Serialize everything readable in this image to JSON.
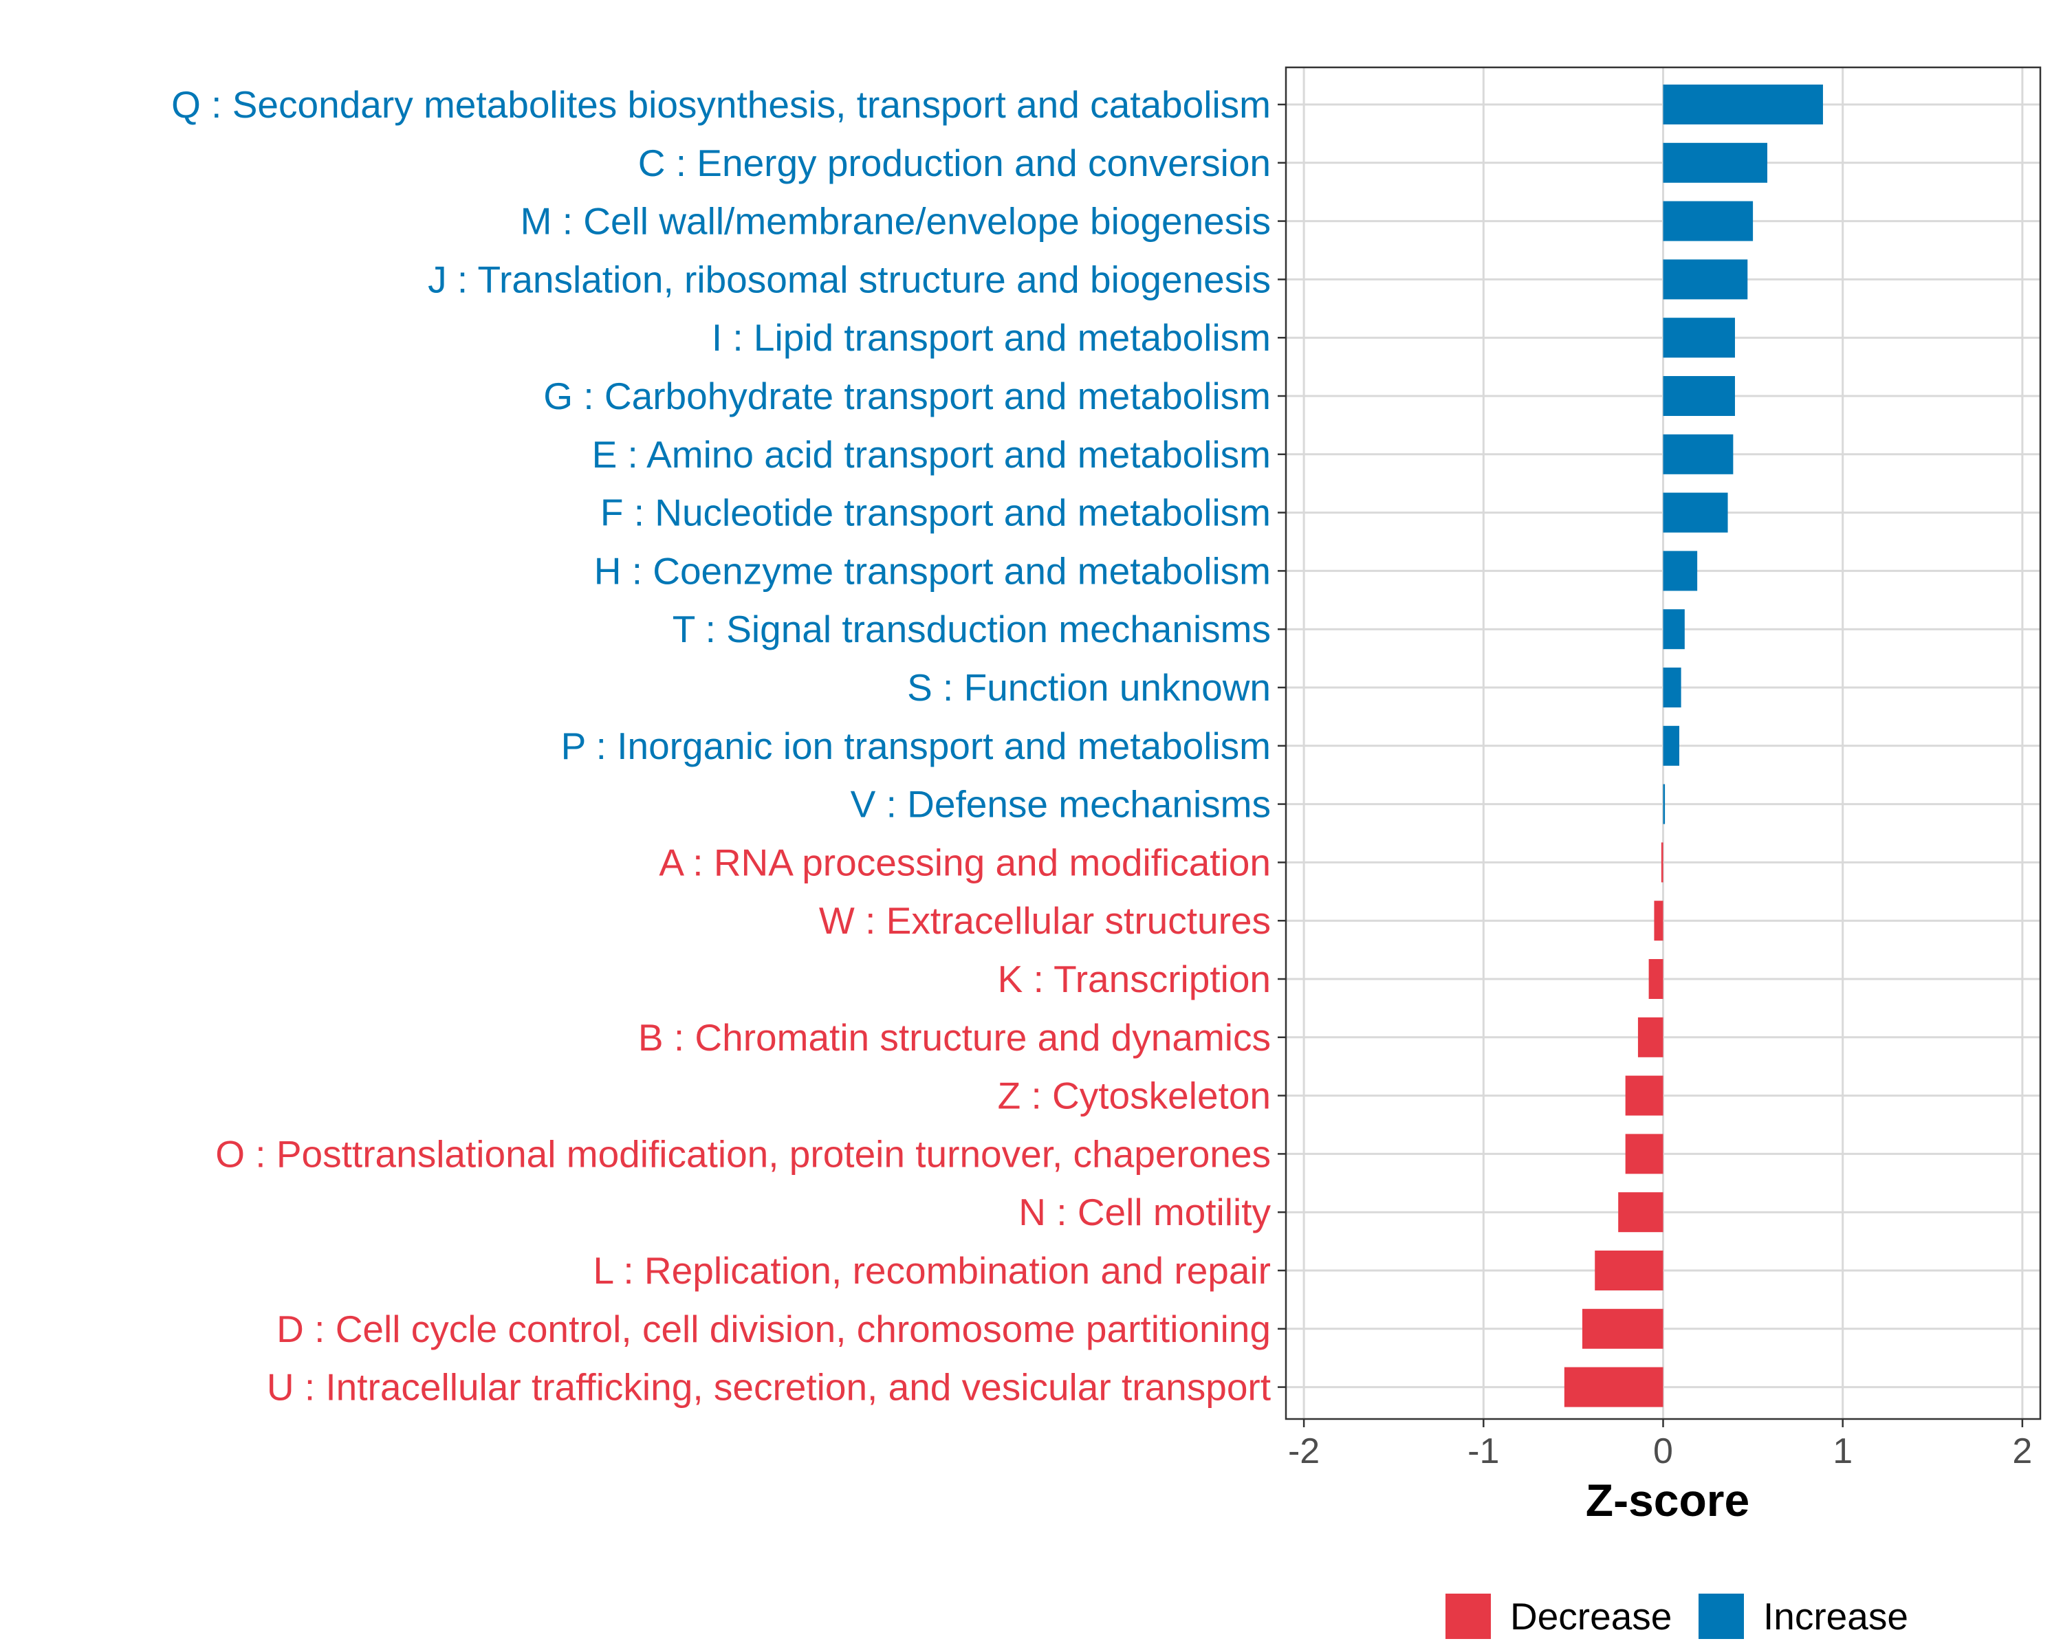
{
  "chart_data": {
    "type": "bar",
    "orientation": "horizontal",
    "xlabel": "Z-score",
    "xlim": [
      -2.1,
      2.1
    ],
    "xticks": [
      -2,
      -1,
      0,
      1,
      2
    ],
    "xtick_labels": [
      "-2",
      "-1",
      "0",
      "1",
      "2"
    ],
    "grid": true,
    "legend_position": "bottom",
    "colors": {
      "Decrease": "#e63946",
      "Increase": "#0077b6"
    },
    "legend": [
      {
        "label": "Decrease",
        "color": "#e63946"
      },
      {
        "label": "Increase",
        "color": "#0077b6"
      }
    ],
    "categories": [
      "Q : Secondary metabolites biosynthesis, transport and catabolism",
      "C : Energy production and conversion",
      "M : Cell wall/membrane/envelope biogenesis",
      "J : Translation, ribosomal structure and biogenesis",
      "I : Lipid transport and metabolism",
      "G : Carbohydrate transport and metabolism",
      "E : Amino acid transport and metabolism",
      "F : Nucleotide transport and metabolism",
      "H : Coenzyme transport and metabolism",
      "T : Signal transduction mechanisms",
      "S : Function unknown",
      "P : Inorganic ion transport and metabolism",
      "V : Defense mechanisms",
      "A : RNA processing and modification",
      "W : Extracellular structures",
      "K : Transcription",
      "B : Chromatin structure and dynamics",
      "Z : Cytoskeleton",
      "O : Posttranslational modification, protein turnover, chaperones",
      "N : Cell motility",
      "L : Replication, recombination and repair",
      "D : Cell cycle control, cell division, chromosome partitioning",
      "U : Intracellular trafficking, secretion, and vesicular transport"
    ],
    "values": [
      0.89,
      0.58,
      0.5,
      0.47,
      0.4,
      0.4,
      0.39,
      0.36,
      0.19,
      0.12,
      0.1,
      0.09,
      0.01,
      -0.01,
      -0.05,
      -0.08,
      -0.14,
      -0.21,
      -0.21,
      -0.25,
      -0.38,
      -0.45,
      -0.55
    ],
    "groups": [
      "Increase",
      "Increase",
      "Increase",
      "Increase",
      "Increase",
      "Increase",
      "Increase",
      "Increase",
      "Increase",
      "Increase",
      "Increase",
      "Increase",
      "Increase",
      "Decrease",
      "Decrease",
      "Decrease",
      "Decrease",
      "Decrease",
      "Decrease",
      "Decrease",
      "Decrease",
      "Decrease",
      "Decrease"
    ]
  }
}
